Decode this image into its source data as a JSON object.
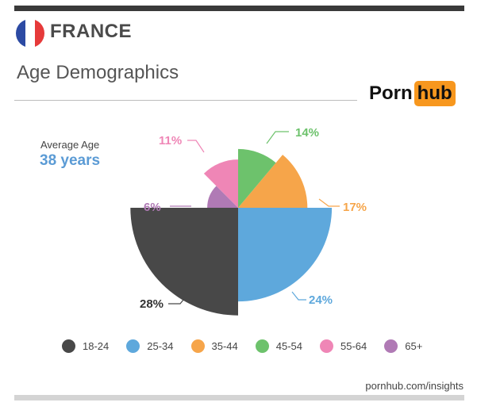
{
  "header": {
    "country": "FRANCE",
    "subtitle": "Age Demographics",
    "logo_left": "Porn",
    "logo_right": "hub",
    "flag": [
      "#2c4aa3",
      "#ffffff",
      "#e63a3a"
    ]
  },
  "average_age": {
    "label": "Average Age",
    "value": "38 years"
  },
  "chart_data": {
    "type": "pie",
    "title": "",
    "variant": "polar-area",
    "categories": [
      "18-24",
      "25-34",
      "35-44",
      "45-54",
      "55-64",
      "65+"
    ],
    "values": [
      28,
      24,
      17,
      14,
      11,
      6
    ],
    "value_labels": [
      "28%",
      "24%",
      "17%",
      "14%",
      "11%",
      "6%"
    ],
    "colors": [
      "#484848",
      "#5ea8dc",
      "#f6a54a",
      "#6dc26c",
      "#ef86b6",
      "#b07ab5"
    ],
    "legend_position": "bottom"
  },
  "footer": {
    "url": "pornhub.com/insights"
  }
}
